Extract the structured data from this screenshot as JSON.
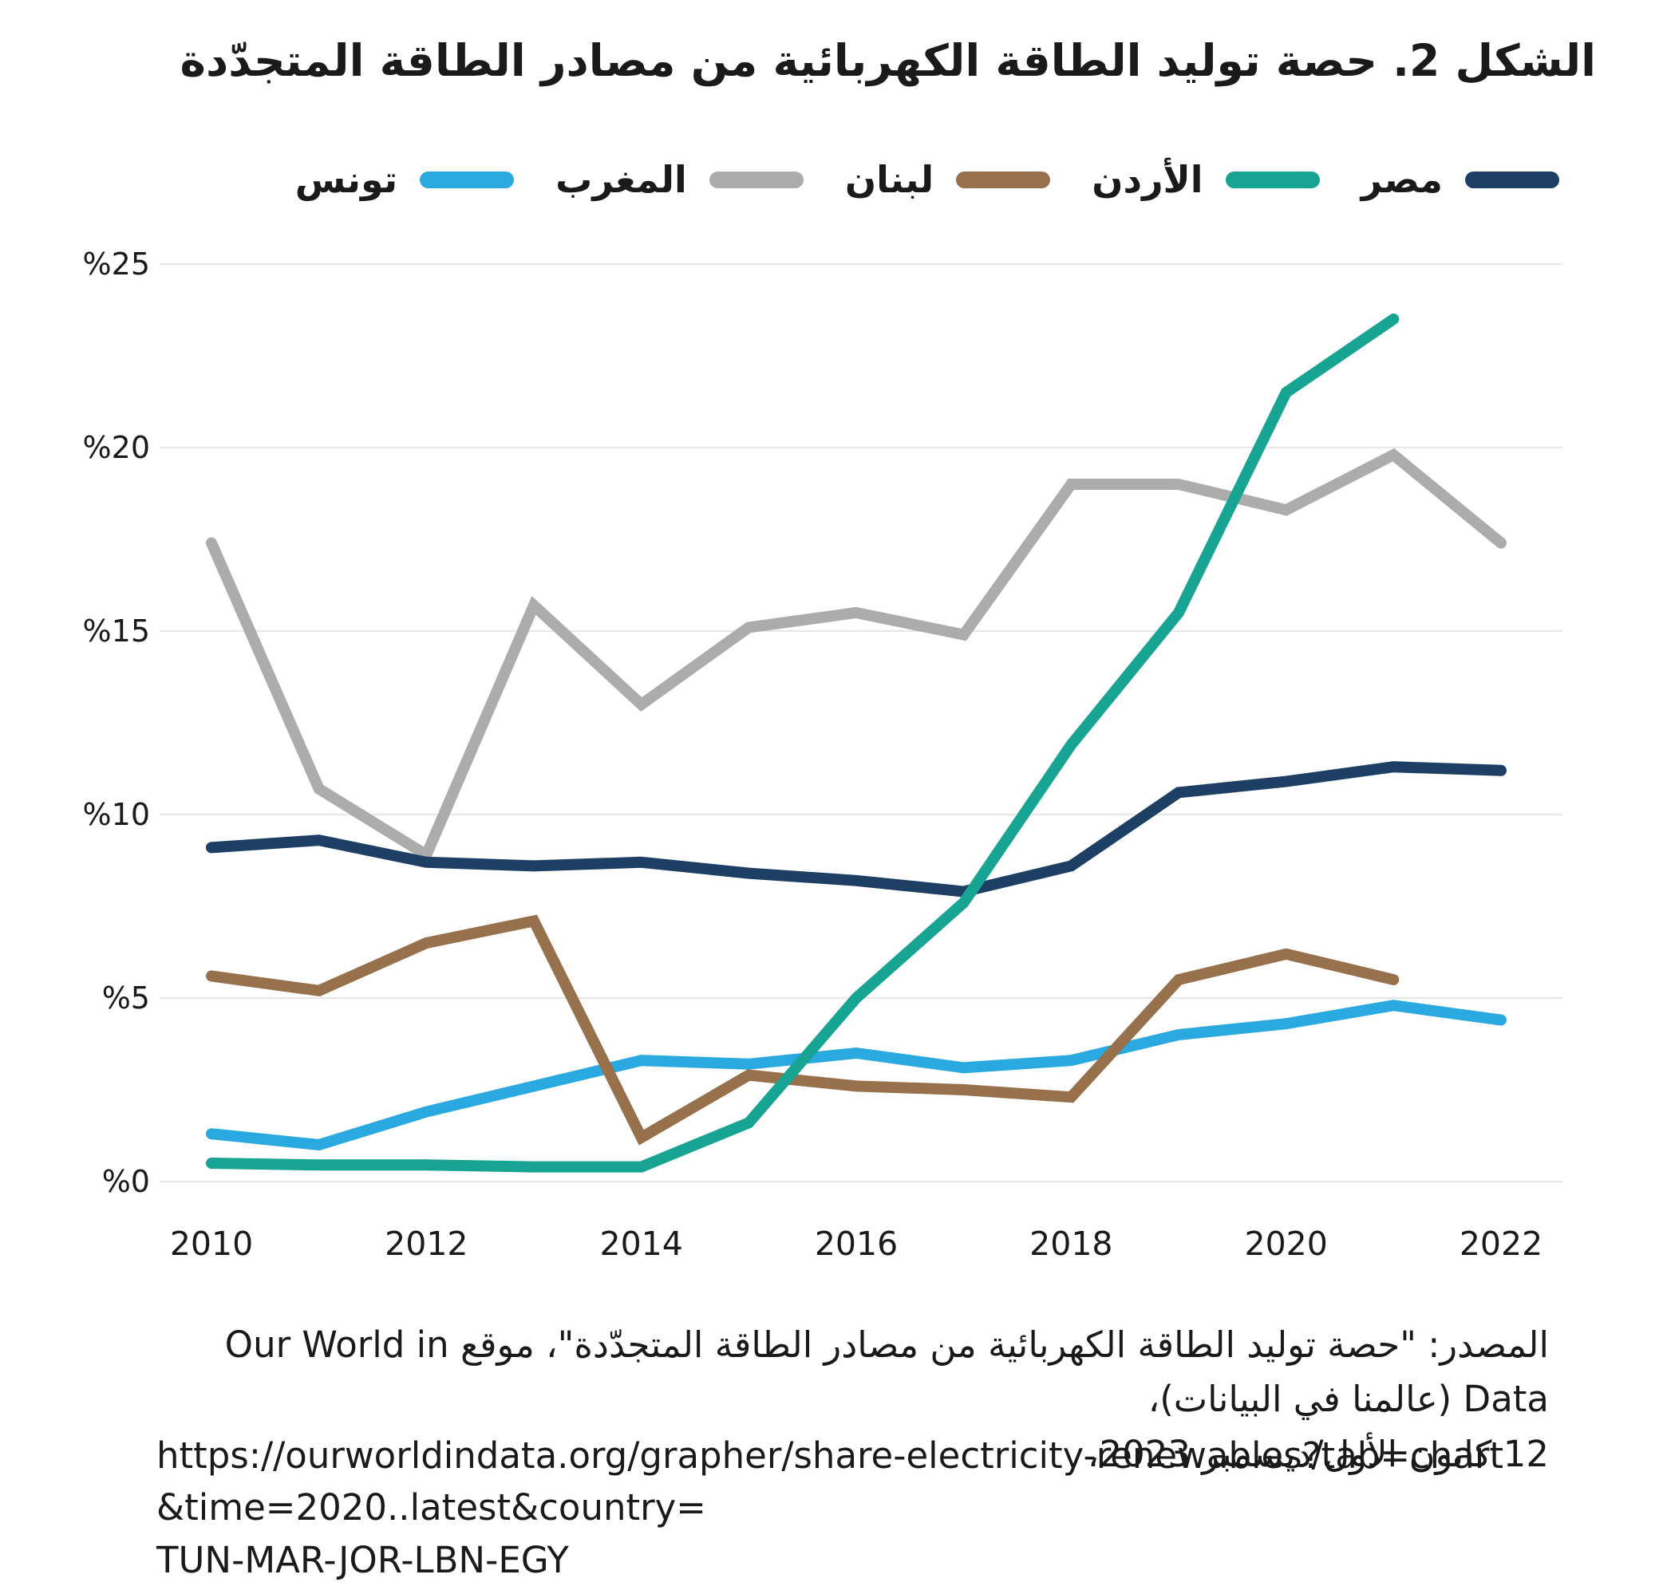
{
  "title": "الشكل 2. حصة توليد الطاقة الكهربائية من مصادر الطاقة المتجدّدة",
  "chart_data": {
    "type": "line",
    "x": [
      2010,
      2011,
      2012,
      2013,
      2014,
      2015,
      2016,
      2017,
      2018,
      2019,
      2020,
      2021,
      2022
    ],
    "series": [
      {
        "id": "egypt",
        "label": "مصر",
        "color": "#1C3F63",
        "values": [
          9.1,
          9.3,
          8.7,
          8.6,
          8.7,
          8.4,
          8.2,
          7.9,
          8.6,
          10.6,
          10.9,
          11.3,
          11.2
        ]
      },
      {
        "id": "jordan",
        "label": "الأردن",
        "color": "#17A493",
        "values": [
          0.5,
          0.45,
          0.45,
          0.4,
          0.4,
          1.6,
          5.0,
          7.6,
          11.9,
          15.5,
          21.5,
          23.5,
          null
        ]
      },
      {
        "id": "lebanon",
        "label": "لبنان",
        "color": "#97714B",
        "values": [
          5.6,
          5.2,
          6.5,
          7.1,
          1.2,
          2.9,
          2.6,
          2.5,
          2.3,
          5.5,
          6.2,
          5.5,
          null
        ]
      },
      {
        "id": "morocco",
        "label": "المغرب",
        "color": "#ACACAC",
        "values": [
          17.4,
          10.7,
          8.9,
          15.7,
          13.0,
          15.1,
          15.5,
          14.9,
          19.0,
          19.0,
          18.3,
          19.8,
          17.4
        ]
      },
      {
        "id": "tunisia",
        "label": "تونس",
        "color": "#29A9E0",
        "values": [
          1.3,
          1.0,
          1.9,
          2.6,
          3.3,
          3.2,
          3.5,
          3.1,
          3.3,
          4.0,
          4.3,
          4.8,
          4.4
        ]
      }
    ],
    "ylim": [
      0,
      25
    ],
    "ytick_values": [
      0,
      5,
      10,
      15,
      20,
      25
    ],
    "ytick_labels": [
      "%0",
      "%5",
      "%10",
      "%15",
      "%20",
      "%25"
    ],
    "xticks": [
      2010,
      2012,
      2014,
      2016,
      2018,
      2020,
      2022
    ],
    "grid": true,
    "legend_position": "top",
    "ylabel": "",
    "xlabel": ""
  },
  "source": {
    "line1": "المصدر: \"حصة توليد الطاقة الكهربائية من مصادر الطاقة المتجدّدة\"، موقع Our World in Data (عالمنا في البيانات)،",
    "line2": "12 كانون الأول/ديسمبر 2023،",
    "url_line1": "https://ourworldindata.org/grapher/share-electricity-renewables?tab=chart&time=2020..latest&country=",
    "url_line2": "TUN-MAR-JOR-LBN-EGY"
  }
}
